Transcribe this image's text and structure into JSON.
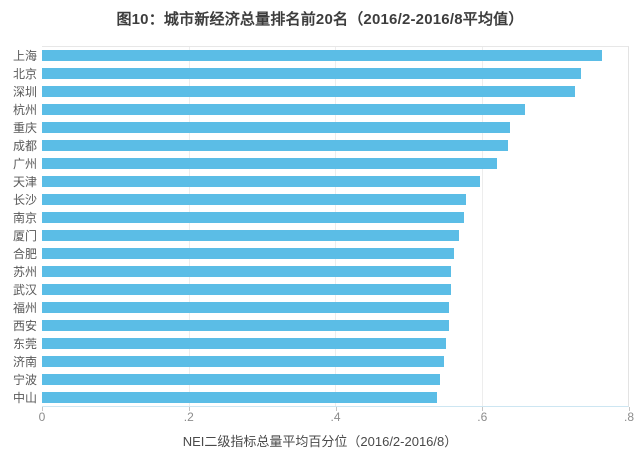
{
  "chart_data": {
    "type": "bar",
    "orientation": "horizontal",
    "title": "图10：城市新经济总量排名前20名（2016/2-2016/8平均值）",
    "xlabel": "NEI二级指标总量平均百分位（2016/2-2016/8）",
    "ylabel": "",
    "categories": [
      "上海",
      "北京",
      "深圳",
      "杭州",
      "重庆",
      "成都",
      "广州",
      "天津",
      "长沙",
      "南京",
      "厦门",
      "合肥",
      "苏州",
      "武汉",
      "福州",
      "西安",
      "东莞",
      "济南",
      "宁波",
      "中山"
    ],
    "values": [
      0.764,
      0.736,
      0.728,
      0.659,
      0.639,
      0.636,
      0.621,
      0.598,
      0.579,
      0.576,
      0.569,
      0.562,
      0.559,
      0.558,
      0.556,
      0.555,
      0.551,
      0.549,
      0.543,
      0.539
    ],
    "xlim": [
      0,
      0.8
    ],
    "xticks": [
      "0",
      ".2",
      ".4",
      ".6",
      ".8"
    ],
    "grid": true,
    "legend": "none",
    "bar_color": "#5bbde6"
  }
}
